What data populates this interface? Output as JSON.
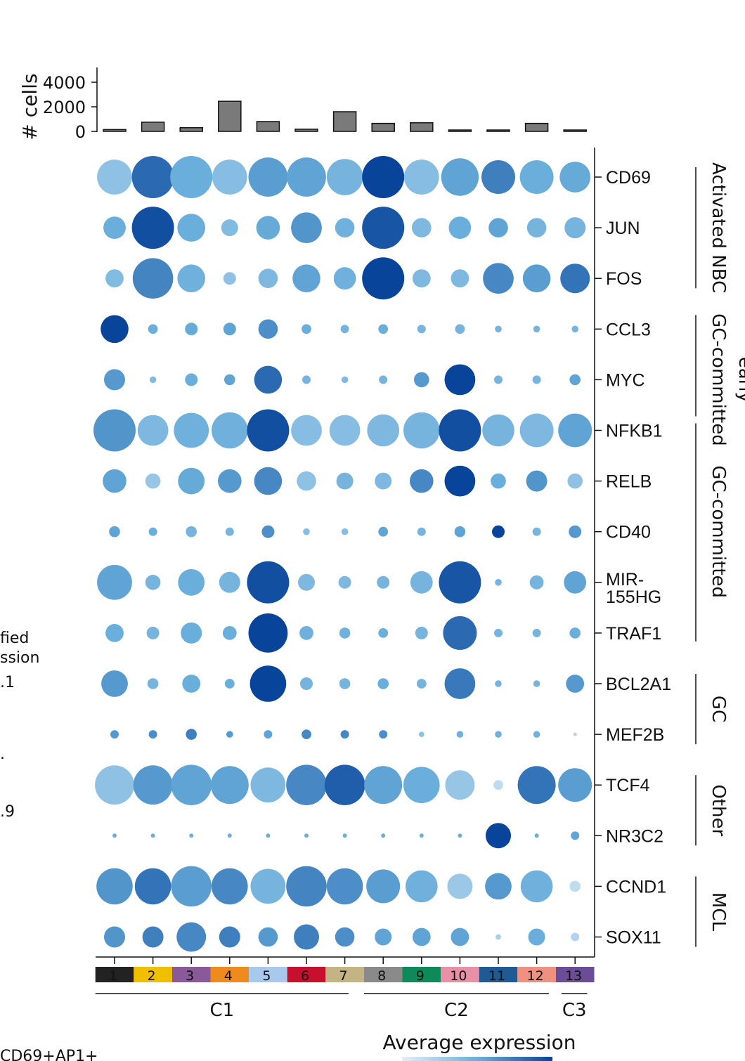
{
  "chart_data": {
    "type": "dotplot",
    "bar_axis_label": "# cells",
    "bar_ticks": [
      "0",
      "2000",
      "4000"
    ],
    "bar_tick_values": [
      0,
      2000,
      4000
    ],
    "bar_ylim": [
      0,
      4000
    ],
    "clusters": [
      {
        "label": "1",
        "color": "#222222",
        "cells": 150
      },
      {
        "label": "2",
        "color": "#f0c000",
        "cells": 750
      },
      {
        "label": "3",
        "color": "#8a5a98",
        "cells": 300
      },
      {
        "label": "4",
        "color": "#f08a1c",
        "cells": 2450
      },
      {
        "label": "5",
        "color": "#a8c8ec",
        "cells": 800
      },
      {
        "label": "6",
        "color": "#c8102e",
        "cells": 180
      },
      {
        "label": "7",
        "color": "#c4b484",
        "cells": 1600
      },
      {
        "label": "8",
        "color": "#8a8a8a",
        "cells": 650
      },
      {
        "label": "9",
        "color": "#0e8a5a",
        "cells": 700
      },
      {
        "label": "10",
        "color": "#e890a8",
        "cells": 100
      },
      {
        "label": "11",
        "color": "#1f5a94",
        "cells": 60
      },
      {
        "label": "12",
        "color": "#f09080",
        "cells": 650
      },
      {
        "label": "13",
        "color": "#6a4c98",
        "cells": 50
      }
    ],
    "genes": [
      {
        "name": "CD69",
        "display": [
          "CD69"
        ]
      },
      {
        "name": "JUN",
        "display": [
          "JUN"
        ]
      },
      {
        "name": "FOS",
        "display": [
          "FOS"
        ]
      },
      {
        "name": "CCL3",
        "display": [
          "CCL3"
        ]
      },
      {
        "name": "MYC",
        "display": [
          "MYC"
        ]
      },
      {
        "name": "NFKB1",
        "display": [
          "NFKB1"
        ]
      },
      {
        "name": "RELB",
        "display": [
          "RELB"
        ]
      },
      {
        "name": "CD40",
        "display": [
          "CD40"
        ]
      },
      {
        "name": "MIR-155HG",
        "display": [
          "MIR-",
          "155HG"
        ]
      },
      {
        "name": "TRAF1",
        "display": [
          "TRAF1"
        ]
      },
      {
        "name": "BCL2A1",
        "display": [
          "BCL2A1"
        ]
      },
      {
        "name": "MEF2B",
        "display": [
          "MEF2B"
        ]
      },
      {
        "name": "TCF4",
        "display": [
          "TCF4"
        ]
      },
      {
        "name": "NR3C2",
        "display": [
          "NR3C2"
        ]
      },
      {
        "name": "CCND1",
        "display": [
          "CCND1"
        ]
      },
      {
        "name": "SOX11",
        "display": [
          "SOX11"
        ]
      }
    ],
    "dot_size": [
      [
        0.83,
        1.0,
        1.0,
        0.83,
        0.93,
        0.93,
        0.86,
        1.0,
        0.83,
        0.89,
        0.8,
        0.8,
        0.73
      ],
      [
        0.53,
        1.0,
        0.66,
        0.4,
        0.56,
        0.73,
        0.46,
        1.0,
        0.46,
        0.53,
        0.46,
        0.46,
        0.5
      ],
      [
        0.43,
        0.96,
        0.66,
        0.3,
        0.46,
        0.66,
        0.53,
        1.0,
        0.43,
        0.43,
        0.73,
        0.66,
        0.7
      ],
      [
        0.66,
        0.23,
        0.3,
        0.3,
        0.46,
        0.23,
        0.2,
        0.23,
        0.2,
        0.23,
        0.16,
        0.16,
        0.16
      ],
      [
        0.5,
        0.16,
        0.3,
        0.26,
        0.66,
        0.2,
        0.16,
        0.2,
        0.36,
        0.73,
        0.2,
        0.2,
        0.26
      ],
      [
        1.0,
        0.73,
        0.83,
        0.86,
        1.0,
        0.73,
        0.73,
        0.76,
        0.86,
        1.0,
        0.76,
        0.8,
        0.8
      ],
      [
        0.56,
        0.36,
        0.63,
        0.56,
        0.66,
        0.46,
        0.4,
        0.4,
        0.56,
        0.73,
        0.36,
        0.5,
        0.36
      ],
      [
        0.26,
        0.2,
        0.26,
        0.2,
        0.3,
        0.16,
        0.16,
        0.23,
        0.2,
        0.26,
        0.3,
        0.2,
        0.3
      ],
      [
        0.83,
        0.36,
        0.63,
        0.5,
        1.0,
        0.4,
        0.3,
        0.3,
        0.53,
        1.0,
        0.16,
        0.33,
        0.53
      ],
      [
        0.43,
        0.3,
        0.5,
        0.33,
        0.93,
        0.33,
        0.26,
        0.23,
        0.3,
        0.8,
        0.2,
        0.2,
        0.26
      ],
      [
        0.63,
        0.26,
        0.43,
        0.23,
        0.86,
        0.3,
        0.26,
        0.26,
        0.23,
        0.73,
        0.16,
        0.16,
        0.43
      ],
      [
        0.2,
        0.2,
        0.26,
        0.16,
        0.2,
        0.23,
        0.2,
        0.2,
        0.13,
        0.16,
        0.16,
        0.16,
        0.06
      ],
      [
        0.93,
        0.93,
        0.96,
        0.9,
        0.83,
        0.96,
        0.96,
        0.9,
        0.86,
        0.7,
        0.23,
        0.9,
        0.8
      ],
      [
        0.1,
        0.1,
        0.1,
        0.1,
        0.1,
        0.1,
        0.1,
        0.1,
        0.1,
        0.1,
        0.6,
        0.1,
        0.2
      ],
      [
        0.86,
        0.86,
        0.96,
        0.86,
        0.83,
        0.96,
        0.86,
        0.8,
        0.76,
        0.6,
        0.63,
        0.76,
        0.26
      ],
      [
        0.5,
        0.5,
        0.7,
        0.5,
        0.46,
        0.6,
        0.46,
        0.4,
        0.43,
        0.43,
        0.13,
        0.4,
        0.2
      ]
    ],
    "avg_expression": [
      [
        0.35,
        0.82,
        0.5,
        0.38,
        0.58,
        0.55,
        0.45,
        1.0,
        0.38,
        0.55,
        0.72,
        0.5,
        0.52
      ],
      [
        0.5,
        0.95,
        0.5,
        0.4,
        0.52,
        0.62,
        0.48,
        0.92,
        0.42,
        0.5,
        0.55,
        0.45,
        0.45
      ],
      [
        0.4,
        0.7,
        0.48,
        0.35,
        0.42,
        0.55,
        0.48,
        1.0,
        0.42,
        0.42,
        0.68,
        0.58,
        0.78
      ],
      [
        1.0,
        0.5,
        0.52,
        0.55,
        0.65,
        0.5,
        0.45,
        0.5,
        0.45,
        0.45,
        0.45,
        0.45,
        0.45
      ],
      [
        0.6,
        0.4,
        0.5,
        0.55,
        0.82,
        0.45,
        0.4,
        0.45,
        0.6,
        1.0,
        0.45,
        0.45,
        0.55
      ],
      [
        0.62,
        0.42,
        0.48,
        0.48,
        0.95,
        0.38,
        0.38,
        0.42,
        0.45,
        0.95,
        0.45,
        0.42,
        0.55
      ],
      [
        0.55,
        0.32,
        0.52,
        0.6,
        0.68,
        0.35,
        0.45,
        0.42,
        0.68,
        1.0,
        0.5,
        0.62,
        0.35
      ],
      [
        0.55,
        0.5,
        0.45,
        0.45,
        0.65,
        0.38,
        0.38,
        0.55,
        0.45,
        0.55,
        1.0,
        0.45,
        0.6
      ],
      [
        0.55,
        0.45,
        0.5,
        0.45,
        0.95,
        0.42,
        0.42,
        0.45,
        0.45,
        0.92,
        0.45,
        0.45,
        0.55
      ],
      [
        0.5,
        0.45,
        0.5,
        0.5,
        1.0,
        0.48,
        0.48,
        0.5,
        0.45,
        0.82,
        0.45,
        0.45,
        0.5
      ],
      [
        0.6,
        0.45,
        0.5,
        0.5,
        1.0,
        0.45,
        0.45,
        0.5,
        0.45,
        0.75,
        0.45,
        0.45,
        0.6
      ],
      [
        0.6,
        0.65,
        0.72,
        0.6,
        0.55,
        0.68,
        0.68,
        0.65,
        0.35,
        0.48,
        0.48,
        0.48,
        0.2
      ],
      [
        0.35,
        0.6,
        0.55,
        0.55,
        0.42,
        0.68,
        0.88,
        0.55,
        0.5,
        0.32,
        0.15,
        0.78,
        0.58
      ],
      [
        0.5,
        0.5,
        0.5,
        0.5,
        0.5,
        0.5,
        0.5,
        0.5,
        0.5,
        0.5,
        1.0,
        0.5,
        0.55
      ],
      [
        0.62,
        0.78,
        0.58,
        0.68,
        0.45,
        0.7,
        0.65,
        0.58,
        0.48,
        0.3,
        0.6,
        0.48,
        0.15
      ],
      [
        0.62,
        0.72,
        0.68,
        0.72,
        0.6,
        0.72,
        0.65,
        0.55,
        0.55,
        0.55,
        0.25,
        0.5,
        0.2
      ]
    ],
    "gene_groups": [
      {
        "label": "Activated NBC",
        "lines": [
          "Activated NBC"
        ],
        "from": 0,
        "to": 2
      },
      {
        "label": "early GC-committed",
        "lines": [
          "early",
          "GC-committed"
        ],
        "from": 3,
        "to": 5
      },
      {
        "label": "GC-committed",
        "lines": [
          "GC-committed"
        ],
        "from": 5,
        "to": 9
      },
      {
        "label": "GC",
        "lines": [
          "GC"
        ],
        "from": 10,
        "to": 11
      },
      {
        "label": "Other",
        "lines": [
          "Other"
        ],
        "from": 12,
        "to": 13
      },
      {
        "label": "MCL",
        "lines": [
          "MCL"
        ],
        "from": 14,
        "to": 15
      }
    ],
    "cluster_groups": [
      {
        "label": "C1",
        "from": 0,
        "to": 6
      },
      {
        "label": "C2",
        "from": 7,
        "to": 11
      },
      {
        "label": "C3",
        "from": 12,
        "to": 12
      }
    ],
    "color_legend_title": "Average expression",
    "colors": {
      "low": "#e4eef8",
      "mid": "#6aaedb",
      "high": "#08449a",
      "bar": "#7a7a7a"
    },
    "left_fragments": [
      "fied",
      "ssion",
      ".1",
      ".",
      ".9"
    ],
    "bottom_fragment": "CD69+AP1+"
  }
}
